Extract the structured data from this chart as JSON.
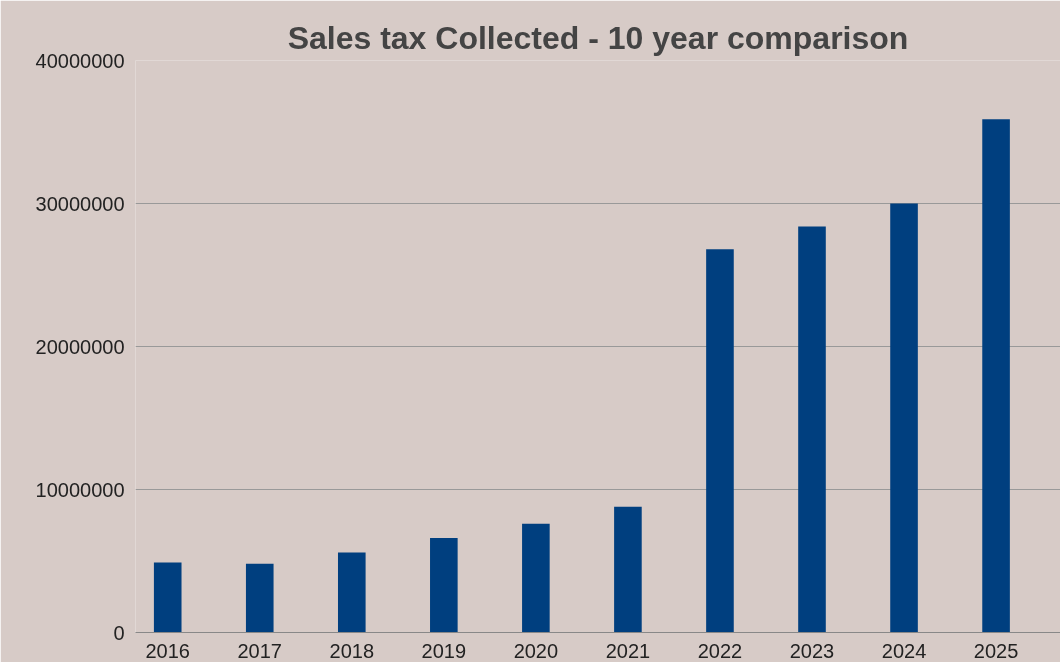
{
  "chart_data": {
    "type": "bar",
    "title": "Sales tax Collected - 10 year comparison",
    "categories": [
      "2016",
      "2017",
      "2018",
      "2019",
      "2020",
      "2021",
      "2022",
      "2023",
      "2024",
      "2025"
    ],
    "values": [
      4900000,
      4800000,
      5600000,
      6600000,
      7600000,
      8800000,
      26800000,
      28400000,
      30000000,
      35900000
    ],
    "color": "#003f7f",
    "ylim": [
      0,
      40000000
    ],
    "yticks": [
      0,
      10000000,
      20000000,
      30000000,
      40000000
    ],
    "grid": "y"
  }
}
